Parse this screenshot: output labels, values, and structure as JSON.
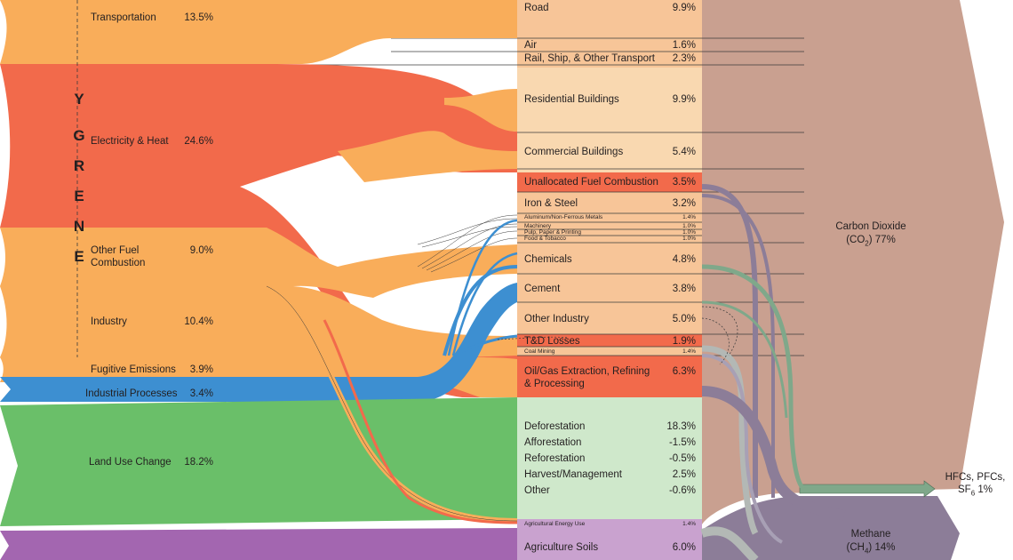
{
  "energy_label": [
    "E",
    "N",
    "E",
    "R",
    "G",
    "Y"
  ],
  "sectors": [
    {
      "name": "Transportation",
      "value": "13.5%"
    },
    {
      "name": "Electricity & Heat",
      "value": "24.6%"
    },
    {
      "name": "Other Fuel\nCombustion",
      "value": "9.0%"
    },
    {
      "name": "Industry",
      "value": "10.4%"
    },
    {
      "name": "Fugitive Emissions",
      "value": "3.9%"
    },
    {
      "name": "Industrial Processes",
      "value": "3.4%"
    },
    {
      "name": "Land Use Change",
      "value": "18.2%"
    }
  ],
  "end_uses": [
    {
      "name": "Road",
      "value": "9.9%"
    },
    {
      "name": "Air",
      "value": "1.6%"
    },
    {
      "name": "Rail, Ship, & Other Transport",
      "value": "2.3%"
    },
    {
      "name": "Residential Buildings",
      "value": "9.9%"
    },
    {
      "name": "Commercial Buildings",
      "value": "5.4%"
    },
    {
      "name": "Unallocated Fuel Combustion",
      "value": "3.5%"
    },
    {
      "name": "Iron & Steel",
      "value": "3.2%"
    },
    {
      "name": "Aluminum/Non-Ferrous Metals",
      "value": "1.4%"
    },
    {
      "name": "Machinery",
      "value": "1.0%"
    },
    {
      "name": "Pulp, Paper & Printing",
      "value": "1.0%"
    },
    {
      "name": "Food & Tobacco",
      "value": "1.0%"
    },
    {
      "name": "Chemicals",
      "value": "4.8%"
    },
    {
      "name": "Cement",
      "value": "3.8%"
    },
    {
      "name": "Other Industry",
      "value": "5.0%"
    },
    {
      "name": "T&D Losses",
      "value": "1.9%"
    },
    {
      "name": "Coal Mining",
      "value": "1.4%"
    },
    {
      "name": "Oil/Gas Extraction, Refining\n& Processing",
      "value": "6.3%"
    },
    {
      "name": "Deforestation",
      "value": "18.3%"
    },
    {
      "name": "Afforestation",
      "value": "-1.5%"
    },
    {
      "name": "Reforestation",
      "value": "-0.5%"
    },
    {
      "name": "Harvest/Management",
      "value": "2.5%"
    },
    {
      "name": "Other",
      "value": "-0.6%"
    },
    {
      "name": "Agricultural Energy Use",
      "value": "1.4%"
    },
    {
      "name": "Agriculture Soils",
      "value": "6.0%"
    }
  ],
  "gases": {
    "co2": {
      "line1": "Carbon Dioxide",
      "line2": "(CO",
      "sub": "2",
      "line2_end": ")  77%"
    },
    "hfc": {
      "line1": "HFCs, PFCs,",
      "line2": "SF",
      "sub": "6",
      "line2_end": "  1%"
    },
    "ch4": {
      "line1": "Methane",
      "line2": "(CH",
      "sub": "4",
      "line2_end": ")  14%"
    }
  },
  "colors": {
    "transport": "#f9ad5a",
    "electricity": "#f26a4b",
    "other_fuel": "#f9ad5a",
    "industry": "#f9ad5a",
    "industrial_processes": "#3d8fd1",
    "land_use": "#6abf69",
    "agriculture": "#a366b0",
    "co2": "#c9a090",
    "ch4": "#8c7d98",
    "hfc": "#7fa88a",
    "pastel_orange": "#f7c598",
    "pastel_light": "#f9d8b0",
    "pastel_green": "#cfe8cb",
    "pastel_purple": "#c9a2cf"
  }
}
